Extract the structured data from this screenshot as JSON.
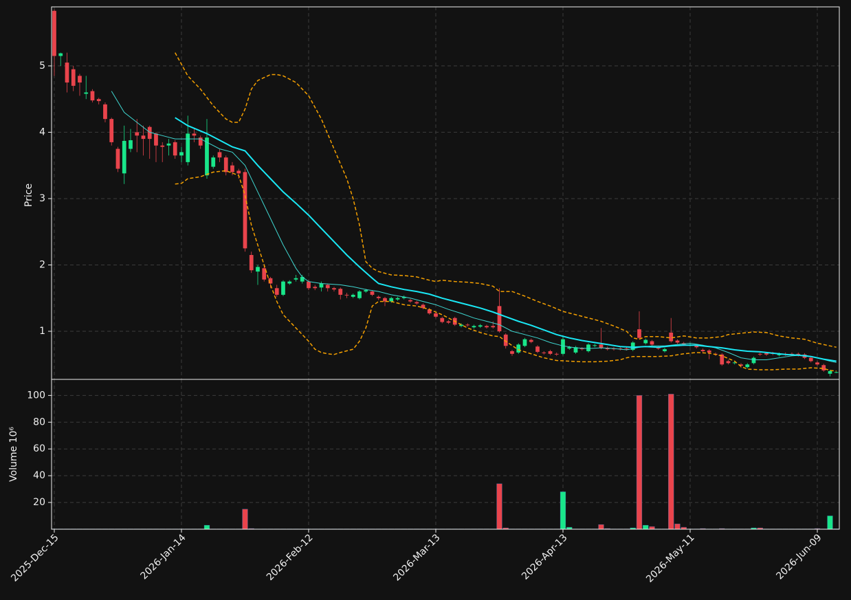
{
  "chart_data": {
    "type": "candlestick",
    "ylabel": "Price",
    "ylim": [
      0.275,
      5.89
    ],
    "yticks": [
      1,
      2,
      3,
      4,
      5
    ],
    "xlim": [
      -0.43,
      123.46
    ],
    "xticks": [
      {
        "value": 0,
        "label": "2025-Dec-15"
      },
      {
        "value": 20,
        "label": "2026-Jan-14"
      },
      {
        "value": 40,
        "label": "2026-Feb-12"
      },
      {
        "value": 60,
        "label": "2026-Mar-13"
      },
      {
        "value": 80,
        "label": "2026-Apr-13"
      },
      {
        "value": 100,
        "label": "2026-May-11"
      },
      {
        "value": 120,
        "label": "2026-Jun-09"
      }
    ],
    "grid": true,
    "up_color": "#19e68a",
    "down_color": "#e9444c",
    "open": [
      5.83,
      5.15,
      5.05,
      4.95,
      4.85,
      4.58,
      4.62,
      4.5,
      4.42,
      4.2,
      3.75,
      3.38,
      3.75,
      4.0,
      3.95,
      4.08,
      3.98,
      3.8,
      3.8,
      3.85,
      3.65,
      3.55,
      3.98,
      3.92,
      3.35,
      3.48,
      3.7,
      3.62,
      3.5,
      3.42,
      3.4,
      2.15,
      1.9,
      1.95,
      1.8,
      1.65,
      1.55,
      1.72,
      1.78,
      1.75,
      1.75,
      1.67,
      1.66,
      1.7,
      1.65,
      1.64,
      1.55,
      1.52,
      1.5,
      1.6,
      1.6,
      1.52,
      1.5,
      1.45,
      1.48,
      1.5,
      1.47,
      1.44,
      1.4,
      1.33,
      1.27,
      1.2,
      1.15,
      1.2,
      1.08,
      1.1,
      1.06,
      1.07,
      1.08,
      1.08,
      1.38,
      0.95,
      0.7,
      0.68,
      0.78,
      0.87,
      0.77,
      0.68,
      0.7,
      0.66,
      0.66,
      0.74,
      0.68,
      0.74,
      0.7,
      0.78,
      0.8,
      0.75,
      0.74,
      0.74,
      0.74,
      0.72,
      1.03,
      0.82,
      0.85,
      0.76,
      0.7,
      0.98,
      0.86,
      0.82,
      0.79,
      0.78,
      0.72,
      0.71,
      0.66,
      0.65,
      0.55,
      0.52,
      0.5,
      0.46,
      0.52,
      0.66,
      0.67,
      0.67,
      0.64,
      0.66,
      0.66,
      0.66,
      0.65,
      0.6,
      0.53,
      0.49,
      0.36,
      0.375
    ],
    "high": [
      5.85,
      5.2,
      5.2,
      5.0,
      4.88,
      4.85,
      4.65,
      4.52,
      4.45,
      4.22,
      3.78,
      4.1,
      4.05,
      4.2,
      4.1,
      4.1,
      4.0,
      3.85,
      3.9,
      3.88,
      3.78,
      4.25,
      4.05,
      3.95,
      4.2,
      3.65,
      3.75,
      3.65,
      3.55,
      3.45,
      3.45,
      2.2,
      2.0,
      1.98,
      1.82,
      1.7,
      1.77,
      1.77,
      1.85,
      1.85,
      1.77,
      1.7,
      1.75,
      1.72,
      1.67,
      1.66,
      1.58,
      1.57,
      1.62,
      1.64,
      1.62,
      1.54,
      1.52,
      1.52,
      1.52,
      1.54,
      1.49,
      1.46,
      1.42,
      1.35,
      1.29,
      1.22,
      1.17,
      1.22,
      1.12,
      1.12,
      1.1,
      1.11,
      1.1,
      1.15,
      1.65,
      0.97,
      0.72,
      0.82,
      0.9,
      0.89,
      0.79,
      0.7,
      0.72,
      0.68,
      0.92,
      0.78,
      0.78,
      0.76,
      0.82,
      0.81,
      1.05,
      0.77,
      0.76,
      0.76,
      0.76,
      0.85,
      1.3,
      0.89,
      0.87,
      0.78,
      0.75,
      1.2,
      0.88,
      0.84,
      0.82,
      0.8,
      0.74,
      0.73,
      0.68,
      0.67,
      0.57,
      0.55,
      0.52,
      0.52,
      0.62,
      0.68,
      0.69,
      0.69,
      0.68,
      0.68,
      0.68,
      0.68,
      0.67,
      0.62,
      0.55,
      0.51,
      0.42,
      0.39
    ],
    "low": [
      4.85,
      5.0,
      4.6,
      4.62,
      4.55,
      4.5,
      4.45,
      4.42,
      4.15,
      3.8,
      3.4,
      3.22,
      3.7,
      3.7,
      3.65,
      3.6,
      3.55,
      3.55,
      3.65,
      3.6,
      3.55,
      3.5,
      3.85,
      3.75,
      3.3,
      3.45,
      3.55,
      3.35,
      3.35,
      3.3,
      2.2,
      1.88,
      1.7,
      1.75,
      1.65,
      1.52,
      1.53,
      1.7,
      1.75,
      1.72,
      1.62,
      1.62,
      1.6,
      1.6,
      1.6,
      1.48,
      1.5,
      1.5,
      1.48,
      1.58,
      1.53,
      1.47,
      1.38,
      1.43,
      1.46,
      1.48,
      1.43,
      1.4,
      1.33,
      1.25,
      1.2,
      1.12,
      1.11,
      1.08,
      1.06,
      1.07,
      1.04,
      1.05,
      1.04,
      1.04,
      0.98,
      0.74,
      0.63,
      0.66,
      0.76,
      0.82,
      0.67,
      0.65,
      0.64,
      0.63,
      0.64,
      0.72,
      0.66,
      0.71,
      0.68,
      0.76,
      0.73,
      0.71,
      0.71,
      0.71,
      0.71,
      0.7,
      0.88,
      0.8,
      0.78,
      0.72,
      0.68,
      0.83,
      0.81,
      0.78,
      0.77,
      0.74,
      0.68,
      0.58,
      0.63,
      0.48,
      0.5,
      0.5,
      0.45,
      0.44,
      0.5,
      0.63,
      0.63,
      0.64,
      0.62,
      0.63,
      0.63,
      0.62,
      0.58,
      0.53,
      0.48,
      0.39,
      0.32,
      0.37
    ],
    "close": [
      5.15,
      5.19,
      4.75,
      4.7,
      4.75,
      4.6,
      4.48,
      4.47,
      4.2,
      3.85,
      3.45,
      3.87,
      3.88,
      3.95,
      3.9,
      3.9,
      3.8,
      3.78,
      3.83,
      3.65,
      3.7,
      3.98,
      3.95,
      3.8,
      3.92,
      3.62,
      3.62,
      3.4,
      3.4,
      3.38,
      2.25,
      1.92,
      1.97,
      1.78,
      1.72,
      1.55,
      1.75,
      1.75,
      1.8,
      1.82,
      1.65,
      1.65,
      1.72,
      1.65,
      1.63,
      1.55,
      1.54,
      1.55,
      1.6,
      1.62,
      1.55,
      1.5,
      1.45,
      1.5,
      1.5,
      1.52,
      1.45,
      1.42,
      1.35,
      1.27,
      1.22,
      1.14,
      1.13,
      1.1,
      1.1,
      1.09,
      1.08,
      1.09,
      1.06,
      1.06,
      1.0,
      0.78,
      0.66,
      0.8,
      0.88,
      0.84,
      0.69,
      0.67,
      0.66,
      0.65,
      0.88,
      0.76,
      0.76,
      0.73,
      0.8,
      0.79,
      0.75,
      0.73,
      0.73,
      0.73,
      0.73,
      0.83,
      0.9,
      0.87,
      0.8,
      0.74,
      0.73,
      0.85,
      0.83,
      0.8,
      0.8,
      0.76,
      0.7,
      0.68,
      0.65,
      0.5,
      0.52,
      0.53,
      0.48,
      0.5,
      0.6,
      0.65,
      0.65,
      0.66,
      0.66,
      0.65,
      0.65,
      0.64,
      0.6,
      0.55,
      0.5,
      0.41,
      0.4,
      0.385
    ],
    "overlays": [
      {
        "color": "#3fd6d0",
        "width": 1,
        "dash": false,
        "x": [
          9,
          11,
          13,
          15,
          17,
          19,
          21,
          23,
          24,
          26,
          28,
          30,
          32,
          34,
          36,
          38,
          39,
          40,
          42,
          45,
          47,
          49,
          51,
          53,
          56,
          58,
          60,
          62,
          64,
          66,
          68,
          70,
          72,
          74,
          76,
          78,
          80,
          82,
          84,
          86,
          88,
          90,
          92,
          94,
          96,
          98,
          100,
          102,
          104,
          106,
          108,
          110,
          112,
          114,
          116,
          118,
          120,
          122,
          123
        ],
        "values": [
          4.62,
          4.3,
          4.15,
          4.0,
          3.95,
          3.9,
          3.9,
          3.9,
          3.85,
          3.75,
          3.7,
          3.5,
          3.1,
          2.7,
          2.3,
          1.95,
          1.82,
          1.75,
          1.72,
          1.7,
          1.67,
          1.63,
          1.6,
          1.55,
          1.5,
          1.45,
          1.4,
          1.33,
          1.27,
          1.2,
          1.15,
          1.1,
          1.0,
          0.95,
          0.9,
          0.83,
          0.78,
          0.75,
          0.74,
          0.75,
          0.74,
          0.72,
          0.76,
          0.78,
          0.78,
          0.8,
          0.82,
          0.79,
          0.75,
          0.68,
          0.6,
          0.57,
          0.57,
          0.6,
          0.63,
          0.64,
          0.6,
          0.55,
          0.53
        ]
      },
      {
        "color": "#1ae8f5",
        "width": 2,
        "dash": false,
        "x": [
          19,
          21,
          24,
          26,
          28,
          30,
          32,
          34,
          36,
          38,
          40,
          42,
          44,
          46,
          48,
          50,
          51,
          53,
          55,
          57,
          59,
          61,
          63,
          65,
          67,
          69,
          71,
          73,
          75,
          77,
          79,
          81,
          83,
          85,
          87,
          89,
          91,
          93,
          95,
          97,
          99,
          101,
          103,
          105,
          107,
          109,
          111,
          113,
          115,
          117,
          119,
          121,
          123
        ],
        "values": [
          4.22,
          4.1,
          3.98,
          3.88,
          3.78,
          3.72,
          3.5,
          3.3,
          3.1,
          2.93,
          2.75,
          2.55,
          2.35,
          2.15,
          1.97,
          1.8,
          1.72,
          1.67,
          1.63,
          1.6,
          1.56,
          1.5,
          1.45,
          1.4,
          1.35,
          1.29,
          1.22,
          1.15,
          1.09,
          1.02,
          0.95,
          0.9,
          0.86,
          0.83,
          0.8,
          0.77,
          0.76,
          0.77,
          0.76,
          0.78,
          0.79,
          0.79,
          0.77,
          0.75,
          0.72,
          0.7,
          0.69,
          0.67,
          0.65,
          0.64,
          0.62,
          0.58,
          0.55
        ]
      },
      {
        "color": "#f5a000",
        "width": 1.5,
        "dash": true,
        "x": [
          19,
          21,
          23,
          25,
          27,
          28,
          29,
          30,
          31,
          32,
          34,
          35,
          36,
          38,
          40,
          42,
          44,
          46,
          47,
          48,
          49,
          50,
          51,
          53,
          55,
          57,
          59,
          60,
          61,
          63,
          65,
          67,
          69,
          70,
          72,
          74,
          76,
          78,
          80,
          82,
          84,
          86,
          88,
          90,
          91,
          92,
          93,
          95,
          97,
          99,
          101,
          103,
          105,
          106,
          108,
          110,
          112,
          114,
          116,
          118,
          120,
          122,
          123
        ],
        "values": [
          5.2,
          4.85,
          4.65,
          4.4,
          4.2,
          4.15,
          4.15,
          4.35,
          4.65,
          4.78,
          4.87,
          4.87,
          4.85,
          4.75,
          4.55,
          4.2,
          3.75,
          3.3,
          3.0,
          2.6,
          2.05,
          1.95,
          1.9,
          1.85,
          1.84,
          1.82,
          1.77,
          1.75,
          1.77,
          1.75,
          1.74,
          1.72,
          1.68,
          1.6,
          1.6,
          1.53,
          1.45,
          1.38,
          1.3,
          1.25,
          1.2,
          1.15,
          1.08,
          1.0,
          0.9,
          0.88,
          0.92,
          0.92,
          0.9,
          0.93,
          0.9,
          0.9,
          0.92,
          0.95,
          0.97,
          0.99,
          0.98,
          0.93,
          0.9,
          0.88,
          0.82,
          0.78,
          0.76
        ]
      },
      {
        "color": "#f5a000",
        "width": 1.5,
        "dash": true,
        "x": [
          19,
          20,
          21,
          23,
          25,
          27,
          29,
          30,
          31,
          32,
          33,
          34,
          35,
          36,
          38,
          40,
          41,
          42,
          43,
          44,
          45,
          47,
          48,
          49,
          50,
          51,
          53,
          55,
          57,
          59,
          61,
          63,
          65,
          67,
          69,
          70,
          71,
          73,
          75,
          77,
          79,
          81,
          83,
          85,
          87,
          89,
          90,
          91,
          93,
          95,
          97,
          99,
          101,
          103,
          105,
          107,
          108,
          109,
          111,
          113,
          115,
          117,
          119,
          121,
          122,
          123
        ],
        "values": [
          3.22,
          3.23,
          3.3,
          3.33,
          3.4,
          3.42,
          3.35,
          3.05,
          2.6,
          2.3,
          2.0,
          1.7,
          1.45,
          1.25,
          1.05,
          0.85,
          0.73,
          0.68,
          0.66,
          0.65,
          0.68,
          0.73,
          0.85,
          1.05,
          1.38,
          1.45,
          1.45,
          1.4,
          1.38,
          1.33,
          1.25,
          1.15,
          1.05,
          0.98,
          0.93,
          0.92,
          0.85,
          0.72,
          0.66,
          0.6,
          0.56,
          0.55,
          0.54,
          0.54,
          0.55,
          0.57,
          0.6,
          0.62,
          0.62,
          0.62,
          0.63,
          0.66,
          0.68,
          0.67,
          0.63,
          0.55,
          0.47,
          0.43,
          0.42,
          0.42,
          0.43,
          0.43,
          0.45,
          0.44,
          0.41,
          0.4
        ]
      }
    ],
    "volume": {
      "ylabel": "Volume  10⁶",
      "ylim": [
        0,
        112
      ],
      "yticks": [
        20,
        40,
        60,
        80,
        100
      ],
      "values": [
        0.2,
        0.2,
        0.2,
        0.2,
        0.2,
        0.2,
        0.2,
        0.2,
        0.2,
        0.2,
        0.2,
        0.2,
        0.2,
        0.2,
        0.2,
        0.2,
        0.2,
        0.2,
        0.2,
        0.2,
        0.2,
        0.2,
        0.2,
        0.2,
        3,
        0.2,
        0.2,
        0.2,
        0.2,
        0.2,
        15,
        0.5,
        0.2,
        0.2,
        0.2,
        0.2,
        0.2,
        0.2,
        0.2,
        0.2,
        0.2,
        0.2,
        0.2,
        0.2,
        0.2,
        0.2,
        0.2,
        0.2,
        0.2,
        0.2,
        0.2,
        0.2,
        0.2,
        0.2,
        0.2,
        0.2,
        0.2,
        0.2,
        0.2,
        0.2,
        0.2,
        0.2,
        0.2,
        0.2,
        0.2,
        0.2,
        0.2,
        0.2,
        0.2,
        0.2,
        34,
        1,
        0.2,
        0.2,
        0.2,
        0.2,
        0.2,
        0.2,
        0.2,
        0.2,
        28,
        1.5,
        0.2,
        0.2,
        0.2,
        0.2,
        3.5,
        0.5,
        0.2,
        0.2,
        0.2,
        1,
        100,
        3,
        2,
        0.2,
        0.2,
        101,
        4,
        1.5,
        0.2,
        0.2,
        0.5,
        0.2,
        0.2,
        0.5,
        0.2,
        0.2,
        0.2,
        0.2,
        1,
        1,
        0.2,
        0.2,
        0.2,
        0.2,
        0.2,
        0.2,
        0.2,
        0.2,
        0.5,
        0.2,
        10,
        0.3
      ]
    }
  }
}
